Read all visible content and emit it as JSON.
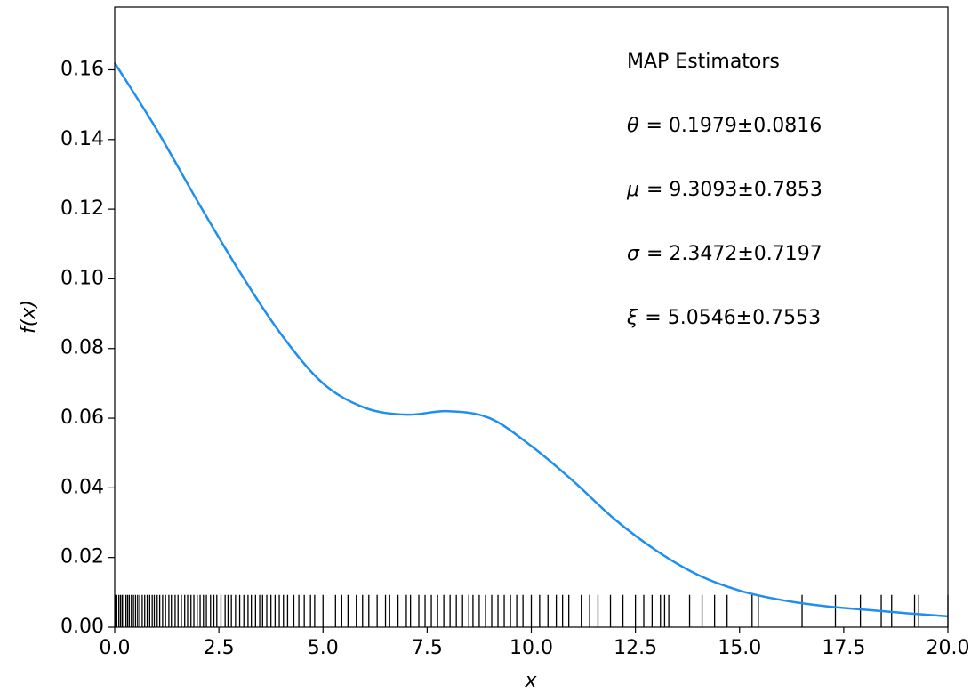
{
  "chart_data": {
    "type": "line",
    "xlabel": "x",
    "ylabel": "f(x)",
    "x": [
      0,
      1,
      2,
      3,
      4,
      5,
      6,
      7,
      8,
      9,
      10,
      11,
      12,
      13,
      14,
      15,
      16,
      17,
      18,
      19,
      20
    ],
    "series": [
      {
        "color": "#1e8ef0",
        "values": [
          0.162,
          0.143,
          0.122,
          0.102,
          0.084,
          0.07,
          0.063,
          0.061,
          0.062,
          0.06,
          0.052,
          0.042,
          0.031,
          0.022,
          0.015,
          0.0105,
          0.0078,
          0.0061,
          0.005,
          0.004,
          0.0031
        ]
      }
    ],
    "rug": {
      "color": "#000000",
      "x": [
        0.02,
        0.05,
        0.1,
        0.14,
        0.18,
        0.22,
        0.27,
        0.31,
        0.35,
        0.4,
        0.45,
        0.5,
        0.55,
        0.6,
        0.66,
        0.72,
        0.78,
        0.84,
        0.9,
        0.95,
        1.02,
        1.08,
        1.15,
        1.22,
        1.3,
        1.36,
        1.45,
        1.52,
        1.6,
        1.68,
        1.75,
        1.83,
        1.9,
        1.98,
        2.05,
        2.13,
        2.2,
        2.3,
        2.38,
        2.45,
        2.55,
        2.65,
        2.72,
        2.8,
        2.9,
        3.0,
        3.1,
        3.2,
        3.28,
        3.38,
        3.48,
        3.55,
        3.65,
        3.75,
        3.85,
        3.95,
        4.05,
        4.15,
        4.3,
        4.42,
        4.55,
        4.7,
        4.8,
        5.0,
        5.3,
        5.45,
        5.6,
        5.8,
        5.95,
        6.1,
        6.3,
        6.5,
        6.6,
        6.8,
        7.0,
        7.1,
        7.3,
        7.45,
        7.6,
        7.75,
        7.9,
        8.05,
        8.2,
        8.35,
        8.5,
        8.6,
        8.75,
        8.9,
        9.05,
        9.2,
        9.35,
        9.5,
        9.65,
        9.8,
        10.0,
        10.2,
        10.4,
        10.6,
        10.75,
        10.9,
        11.2,
        11.4,
        11.6,
        11.9,
        12.2,
        12.5,
        12.7,
        12.9,
        13.1,
        13.2,
        13.3,
        13.8,
        14.1,
        14.4,
        14.7,
        15.3,
        15.45,
        16.5,
        17.3,
        17.9,
        18.4,
        18.65,
        19.2,
        19.3,
        20.0
      ]
    },
    "annotation_title": "MAP Estimators",
    "annotations": [
      {
        "symbol": "θ",
        "text": "= 0.1979±0.0816"
      },
      {
        "symbol": "μ",
        "text": "= 9.3093±0.7853"
      },
      {
        "symbol": "σ",
        "text": "= 2.3472±0.7197"
      },
      {
        "symbol": "ξ",
        "text": "= 5.0546±0.7553"
      }
    ],
    "xlim": [
      0,
      20
    ],
    "ylim": [
      0,
      0.178
    ],
    "xticks": [
      {
        "value": 0,
        "label": "0.0"
      },
      {
        "value": 2.5,
        "label": "2.5"
      },
      {
        "value": 5,
        "label": "5.0"
      },
      {
        "value": 7.5,
        "label": "7.5"
      },
      {
        "value": 10,
        "label": "10.0"
      },
      {
        "value": 12.5,
        "label": "12.5"
      },
      {
        "value": 15,
        "label": "15.0"
      },
      {
        "value": 17.5,
        "label": "17.5"
      },
      {
        "value": 20,
        "label": "20.0"
      }
    ],
    "yticks": [
      {
        "value": 0,
        "label": "0.00"
      },
      {
        "value": 0.02,
        "label": "0.02"
      },
      {
        "value": 0.04,
        "label": "0.04"
      },
      {
        "value": 0.06,
        "label": "0.06"
      },
      {
        "value": 0.08,
        "label": "0.08"
      },
      {
        "value": 0.1,
        "label": "0.10"
      },
      {
        "value": 0.12,
        "label": "0.12"
      },
      {
        "value": 0.14,
        "label": "0.14"
      },
      {
        "value": 0.16,
        "label": "0.16"
      }
    ]
  }
}
